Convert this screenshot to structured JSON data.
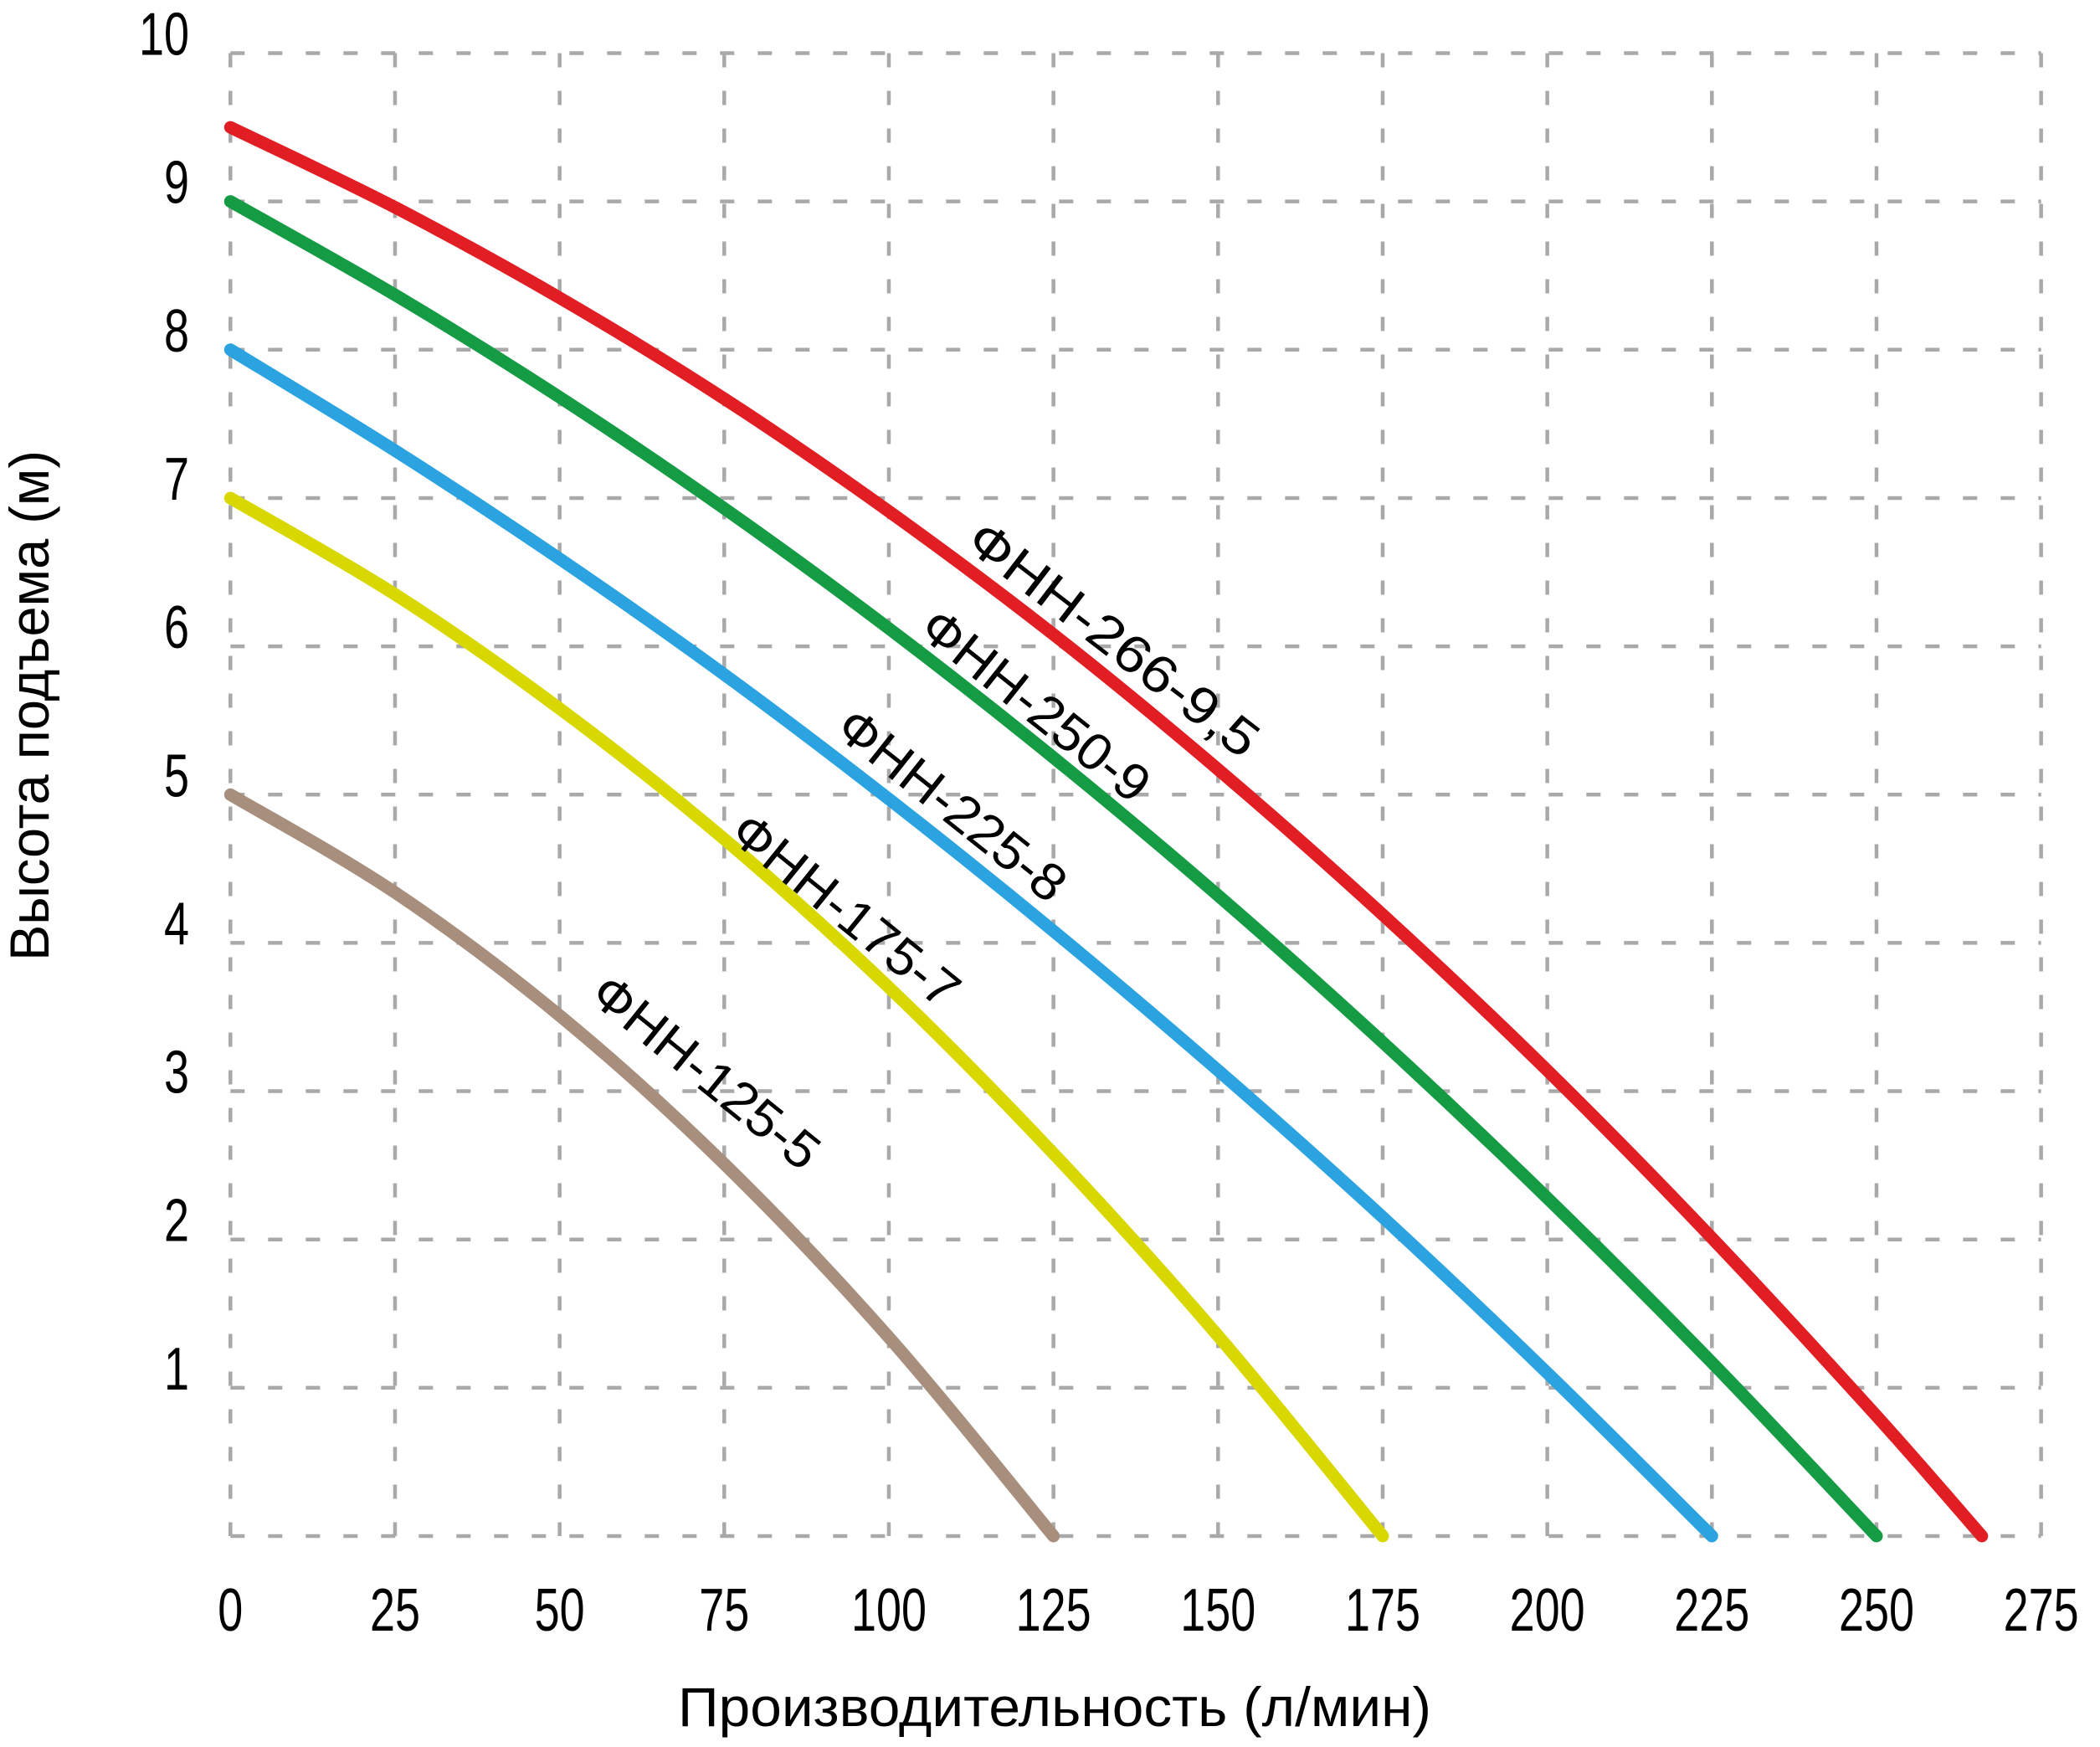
{
  "chart_data": {
    "type": "line",
    "title": "",
    "xlabel": "Производительность (л/мин)",
    "ylabel": "Высота подъема (м)",
    "xlim": [
      0,
      275
    ],
    "ylim": [
      0,
      10
    ],
    "x_ticks": [
      0,
      25,
      50,
      75,
      100,
      125,
      150,
      175,
      200,
      225,
      250,
      275
    ],
    "y_ticks_labeled": [
      1,
      2,
      3,
      4,
      5,
      6,
      7,
      8,
      9,
      10
    ],
    "y_gridlines": [
      0,
      1,
      2,
      3,
      4,
      5,
      6,
      7,
      8,
      9,
      10
    ],
    "grid": "dashed",
    "grid_color": "#a9a9a9",
    "background_color": "#ffffff",
    "legend_position": "labels-along-curves",
    "series": [
      {
        "name": "ФНН-266-9,5",
        "color": "#e21e25",
        "max_head_m": 9.5,
        "max_flow_l_min": 266,
        "points": [
          [
            0,
            9.5
          ],
          [
            25,
            8.96
          ],
          [
            50,
            8.35
          ],
          [
            75,
            7.67
          ],
          [
            100,
            6.91
          ],
          [
            125,
            6.08
          ],
          [
            150,
            5.17
          ],
          [
            175,
            4.19
          ],
          [
            200,
            3.14
          ],
          [
            225,
            2.01
          ],
          [
            250,
            0.81
          ],
          [
            266,
            0
          ]
        ],
        "label_pos": {
          "x": 1330,
          "y": 764,
          "angle": 37.5,
          "length": 420
        }
      },
      {
        "name": "ФНН-250-9",
        "color": "#169b45",
        "max_head_m": 9.0,
        "max_flow_l_min": 250,
        "points": [
          [
            0,
            9.0
          ],
          [
            25,
            8.37
          ],
          [
            50,
            7.68
          ],
          [
            75,
            6.93
          ],
          [
            100,
            6.12
          ],
          [
            125,
            5.25
          ],
          [
            150,
            4.32
          ],
          [
            175,
            3.33
          ],
          [
            200,
            2.28
          ],
          [
            225,
            1.17
          ],
          [
            250,
            0
          ]
        ],
        "label_pos": {
          "x": 1237,
          "y": 843,
          "angle": 38.5,
          "length": 330
        }
      },
      {
        "name": "ФНН-225-8",
        "color": "#2ba3e0",
        "max_head_m": 8.0,
        "max_flow_l_min": 225,
        "points": [
          [
            0,
            8.0
          ],
          [
            25,
            7.32
          ],
          [
            50,
            6.59
          ],
          [
            75,
            5.81
          ],
          [
            100,
            4.97
          ],
          [
            125,
            4.08
          ],
          [
            150,
            3.14
          ],
          [
            175,
            2.15
          ],
          [
            200,
            1.1
          ],
          [
            225,
            0
          ]
        ],
        "label_pos": {
          "x": 1137,
          "y": 962,
          "angle": 38.5,
          "length": 330
        }
      },
      {
        "name": "ФНН-175-7",
        "color": "#d8d800",
        "max_head_m": 7.0,
        "max_flow_l_min": 175,
        "points": [
          [
            0,
            7.0
          ],
          [
            25,
            6.35
          ],
          [
            50,
            5.58
          ],
          [
            75,
            4.7
          ],
          [
            100,
            3.7
          ],
          [
            125,
            2.58
          ],
          [
            150,
            1.35
          ],
          [
            175,
            0
          ]
        ],
        "label_pos": {
          "x": 1010,
          "y": 1088,
          "angle": 39,
          "length": 330
        }
      },
      {
        "name": "ФНН-125-5",
        "color": "#a78e7d",
        "max_head_m": 5.0,
        "max_flow_l_min": 125,
        "points": [
          [
            0,
            5.0
          ],
          [
            25,
            4.34
          ],
          [
            50,
            3.51
          ],
          [
            75,
            2.51
          ],
          [
            100,
            1.34
          ],
          [
            125,
            0
          ]
        ],
        "label_pos": {
          "x": 843,
          "y": 1281,
          "angle": 39,
          "length": 330
        }
      }
    ]
  }
}
